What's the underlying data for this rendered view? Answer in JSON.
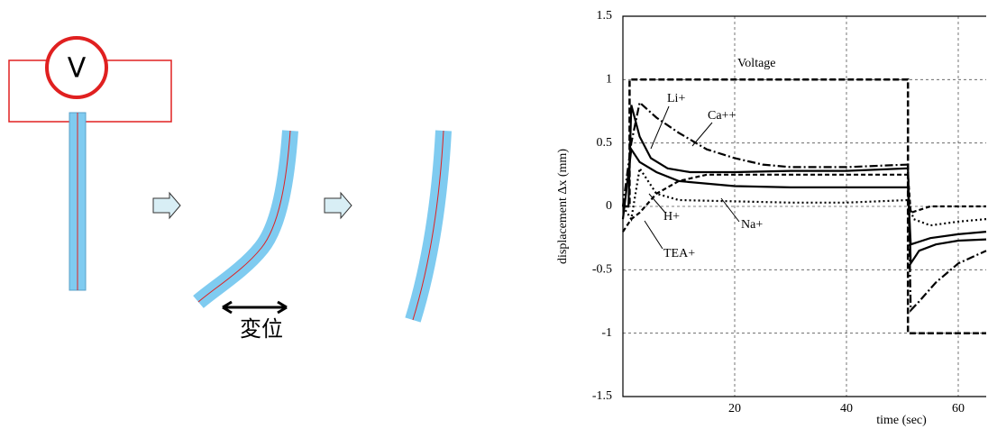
{
  "diagram": {
    "meter_label": "V",
    "displacement_label": "変位"
  },
  "chart_data": {
    "type": "line",
    "x_label": "time (sec)",
    "y_label": "displacement Δx (mm)",
    "xlim": [
      0,
      65
    ],
    "ylim": [
      -1.5,
      1.5
    ],
    "xticks": [
      20,
      40,
      60
    ],
    "yticks": [
      -1.5,
      -1,
      -0.5,
      0,
      0.5,
      1,
      1.5
    ],
    "grid": true,
    "series": [
      {
        "name": "Voltage",
        "color": "#000000",
        "dash": "7,3",
        "x": [
          0,
          1.2,
          1.2,
          51,
          51,
          65
        ],
        "values": [
          0,
          0,
          1,
          1,
          -1,
          -1
        ]
      },
      {
        "name": "Li+",
        "color": "#000000",
        "dash": "none",
        "x": [
          0,
          1,
          1.5,
          3,
          5,
          8,
          12,
          20,
          30,
          40,
          51,
          51.5,
          53,
          56,
          60,
          65
        ],
        "values": [
          0,
          0,
          0.8,
          0.55,
          0.38,
          0.3,
          0.27,
          0.27,
          0.28,
          0.28,
          0.3,
          -0.45,
          -0.35,
          -0.3,
          -0.27,
          -0.26
        ]
      },
      {
        "name": "Ca++",
        "color": "#000000",
        "dash": "9,3,2,3",
        "x": [
          0,
          1.5,
          3,
          6,
          10,
          15,
          20,
          25,
          30,
          40,
          51,
          51.5,
          53,
          56,
          60,
          65
        ],
        "values": [
          0,
          0.5,
          0.82,
          0.7,
          0.58,
          0.45,
          0.38,
          0.33,
          0.31,
          0.31,
          0.33,
          -0.82,
          -0.75,
          -0.6,
          -0.45,
          -0.35
        ]
      },
      {
        "name": "H+",
        "color": "#000000",
        "dash": "2,3",
        "x": [
          0,
          1.5,
          3,
          6,
          10,
          20,
          30,
          40,
          51,
          52,
          55,
          60,
          65
        ],
        "values": [
          0,
          -0.1,
          0.3,
          0.1,
          0.05,
          0.04,
          0.03,
          0.03,
          0.05,
          -0.1,
          -0.15,
          -0.12,
          -0.1
        ]
      },
      {
        "name": "Na+",
        "color": "#000000",
        "dash": "none",
        "x": [
          0,
          1.5,
          3,
          6,
          10,
          20,
          30,
          40,
          51,
          51.5,
          55,
          60,
          65
        ],
        "values": [
          -0.1,
          0.45,
          0.35,
          0.27,
          0.2,
          0.16,
          0.15,
          0.15,
          0.15,
          -0.3,
          -0.25,
          -0.22,
          -0.2
        ]
      },
      {
        "name": "TEA+",
        "color": "#000000",
        "dash": "5,3",
        "x": [
          0,
          1.5,
          3,
          6,
          10,
          15,
          20,
          30,
          40,
          51,
          51.5,
          55,
          60,
          65
        ],
        "values": [
          -0.2,
          -0.1,
          -0.05,
          0.1,
          0.2,
          0.25,
          0.25,
          0.25,
          0.25,
          0.25,
          -0.05,
          0,
          0,
          0
        ]
      }
    ]
  }
}
